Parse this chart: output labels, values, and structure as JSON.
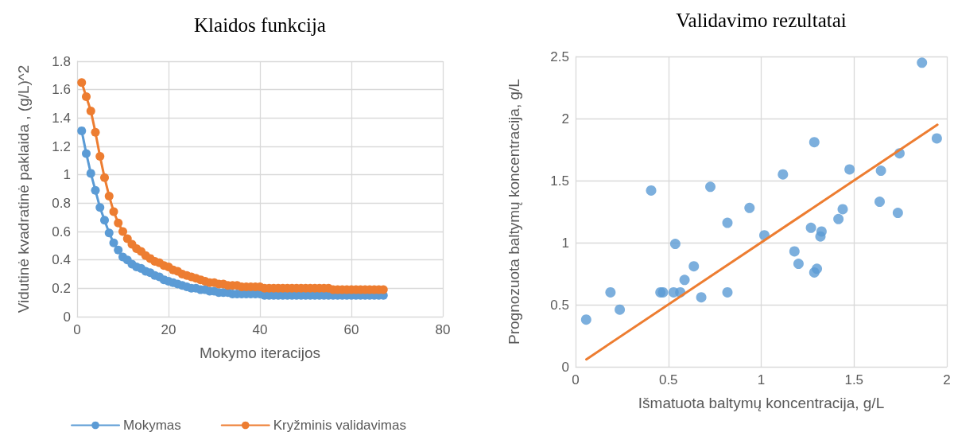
{
  "chart_data": [
    {
      "type": "line",
      "title": "Klaidos funkcija",
      "xlabel": "Mokymo iteracijos",
      "ylabel": "Vidutinė kvadratinė paklaida , (g/L)^2",
      "x": [
        1,
        2,
        3,
        4,
        5,
        6,
        7,
        8,
        9,
        10,
        11,
        12,
        13,
        14,
        15,
        16,
        17,
        18,
        19,
        20,
        21,
        22,
        23,
        24,
        25,
        26,
        27,
        28,
        29,
        30,
        31,
        32,
        33,
        34,
        35,
        36,
        37,
        38,
        39,
        40,
        41,
        42,
        43,
        44,
        45,
        46,
        47,
        48,
        49,
        50,
        51,
        52,
        53,
        54,
        55,
        56,
        57,
        58,
        59,
        60,
        61,
        62,
        63,
        64,
        65,
        66,
        67
      ],
      "series": [
        {
          "name": "Mokymas",
          "color": "#5b9bd5",
          "values": [
            1.31,
            1.15,
            1.01,
            0.89,
            0.77,
            0.68,
            0.59,
            0.52,
            0.47,
            0.42,
            0.4,
            0.37,
            0.35,
            0.34,
            0.32,
            0.31,
            0.29,
            0.28,
            0.26,
            0.25,
            0.24,
            0.23,
            0.22,
            0.21,
            0.2,
            0.2,
            0.19,
            0.19,
            0.18,
            0.18,
            0.17,
            0.17,
            0.17,
            0.16,
            0.16,
            0.16,
            0.16,
            0.16,
            0.16,
            0.16,
            0.15,
            0.15,
            0.15,
            0.15,
            0.15,
            0.15,
            0.15,
            0.15,
            0.15,
            0.15,
            0.15,
            0.15,
            0.15,
            0.15,
            0.15,
            0.15,
            0.15,
            0.15,
            0.15,
            0.15,
            0.15,
            0.15,
            0.15,
            0.15,
            0.15,
            0.15,
            0.15
          ]
        },
        {
          "name": "Kryžminis validavimas",
          "color": "#ed7d31",
          "values": [
            1.65,
            1.55,
            1.45,
            1.3,
            1.13,
            0.98,
            0.85,
            0.74,
            0.66,
            0.6,
            0.55,
            0.51,
            0.48,
            0.46,
            0.43,
            0.41,
            0.39,
            0.38,
            0.36,
            0.35,
            0.33,
            0.32,
            0.3,
            0.29,
            0.28,
            0.27,
            0.26,
            0.25,
            0.24,
            0.24,
            0.23,
            0.23,
            0.22,
            0.22,
            0.22,
            0.21,
            0.21,
            0.21,
            0.21,
            0.21,
            0.2,
            0.2,
            0.2,
            0.2,
            0.2,
            0.2,
            0.2,
            0.2,
            0.2,
            0.2,
            0.2,
            0.2,
            0.2,
            0.2,
            0.2,
            0.19,
            0.19,
            0.19,
            0.19,
            0.19,
            0.19,
            0.19,
            0.19,
            0.19,
            0.19,
            0.19,
            0.19
          ]
        }
      ],
      "xlim": [
        0,
        80
      ],
      "xticks": [
        0,
        20,
        40,
        60,
        80
      ],
      "ylim": [
        0,
        1.8
      ],
      "yticks": [
        0,
        0.2,
        0.4,
        0.6,
        0.8,
        1,
        1.2,
        1.4,
        1.6,
        1.8
      ],
      "grid": true,
      "legend": "bottom",
      "marker": "circle",
      "line_style": "solid"
    },
    {
      "type": "scatter",
      "title": "Validavimo rezultatai",
      "xlabel": "Išmatuota baltymų koncentracija, g/L",
      "ylabel": "Prognozuota baltymų koncentracija, g/L",
      "series": [
        {
          "color": "#5b9bd5",
          "x": [
            0.057,
            0.188,
            0.238,
            0.407,
            0.457,
            0.471,
            0.528,
            0.564,
            0.537,
            0.587,
            0.637,
            0.677,
            0.726,
            0.818,
            0.818,
            0.937,
            1.017,
            1.117,
            1.179,
            1.201,
            1.268,
            1.286,
            1.286,
            1.3,
            1.319,
            1.325,
            1.416,
            1.439,
            1.476,
            1.638,
            1.645,
            1.736,
            1.745,
            1.866,
            1.946
          ],
          "values": [
            0.38,
            0.6,
            0.46,
            1.42,
            0.6,
            0.6,
            0.6,
            0.6,
            0.99,
            0.7,
            0.81,
            0.56,
            1.45,
            1.16,
            0.6,
            1.28,
            1.06,
            1.55,
            0.93,
            0.83,
            1.12,
            1.81,
            0.76,
            0.79,
            1.05,
            1.09,
            1.19,
            1.27,
            1.59,
            1.33,
            1.58,
            1.24,
            1.72,
            2.45,
            1.84
          ]
        },
        {
          "type": "line",
          "color": "#ed7d31",
          "marker": "none",
          "x": [
            0.058,
            1.949
          ],
          "values": [
            0.06,
            1.95
          ]
        }
      ],
      "xlim": [
        0,
        2
      ],
      "xticks": [
        0,
        0.5,
        1,
        1.5,
        2
      ],
      "ylim": [
        0,
        2.5
      ],
      "yticks": [
        0,
        0.5,
        1,
        1.5,
        2,
        2.5
      ],
      "grid": true,
      "marker": "circle"
    }
  ]
}
